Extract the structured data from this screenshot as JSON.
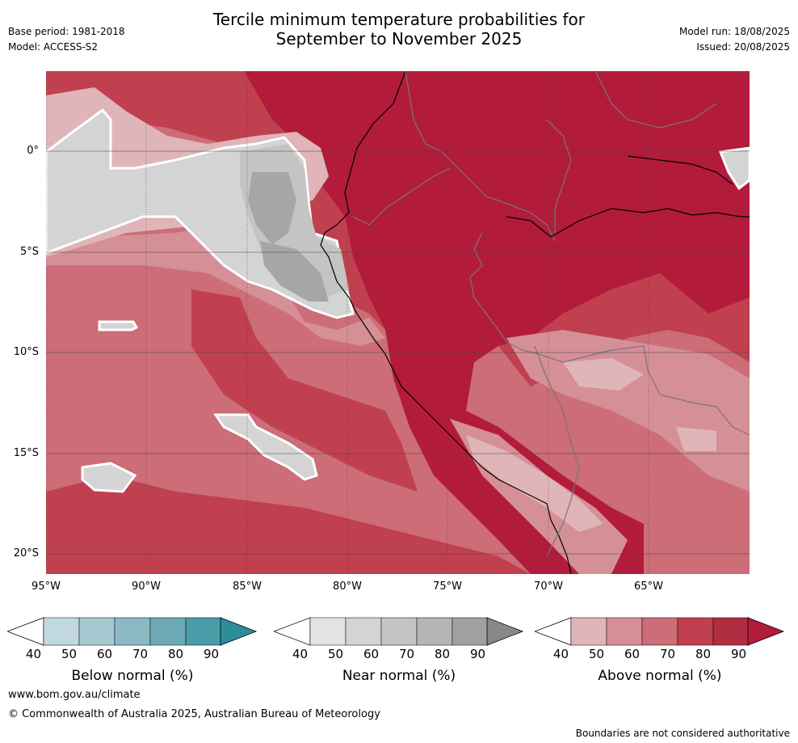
{
  "header": {
    "title_line1": "Tercile minimum temperature probabilities for",
    "title_line2": "September to November 2025",
    "base_period": "Base period: 1981-2018",
    "model": "Model: ACCESS-S2",
    "model_run": "Model run: 18/08/2025",
    "issued": "Issued: 20/08/2025"
  },
  "map": {
    "region": "Western South America",
    "lat_labels": [
      "0°",
      "5°S",
      "10°S",
      "15°S",
      "20°S"
    ],
    "lon_labels": [
      "95°W",
      "90°W",
      "85°W",
      "80°W",
      "75°W",
      "70°W",
      "65°W"
    ],
    "colors": {
      "above_90": "#b21c3a",
      "above_80": "#c0404f",
      "above_70": "#cc6d77",
      "above_60": "#d58f96",
      "above_50": "#dfb5b9",
      "near_50": "#e3e3e3",
      "near_60": "#d4d4d4",
      "near_70": "#c4c4c4",
      "near_80": "#a6a6a6",
      "near_90": "#8a8a8a"
    }
  },
  "colorbars": [
    {
      "label": "Below normal (%)",
      "ticks": [
        "40",
        "50",
        "60",
        "70",
        "80",
        "90"
      ],
      "colors": [
        "#c0d8de",
        "#a6c8d0",
        "#8bb8c3",
        "#6daab6",
        "#4b9ca9",
        "#2f8c9b"
      ]
    },
    {
      "label": "Near normal (%)",
      "ticks": [
        "40",
        "50",
        "60",
        "70",
        "80",
        "90"
      ],
      "colors": [
        "#e3e3e3",
        "#d4d4d4",
        "#c4c4c4",
        "#b4b4b4",
        "#a0a0a0",
        "#888888"
      ]
    },
    {
      "label": "Above normal (%)",
      "ticks": [
        "40",
        "50",
        "60",
        "70",
        "80",
        "90"
      ],
      "colors": [
        "#dfb5b9",
        "#d58f96",
        "#cc6d77",
        "#c0404f",
        "#b02c40",
        "#b21c3a"
      ]
    }
  ],
  "footer": {
    "website": "www.bom.gov.au/climate",
    "copyright": "© Commonwealth of Australia 2025, Australian Bureau of Meteorology",
    "disclaimer": "Boundaries are not considered authoritative"
  }
}
